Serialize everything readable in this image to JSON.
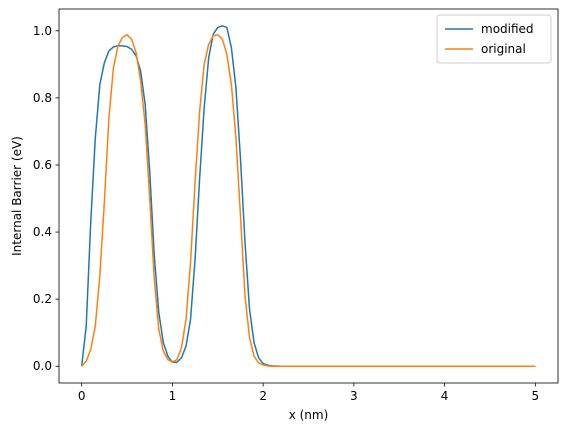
{
  "chart_data": {
    "type": "line",
    "xlabel": "x (nm)",
    "ylabel": "Internal Barrier (eV)",
    "xlim": [
      -0.25,
      5.25
    ],
    "ylim": [
      -0.05,
      1.065
    ],
    "xticks": [
      0,
      1,
      2,
      3,
      4,
      5
    ],
    "xtick_labels": [
      "0",
      "1",
      "2",
      "3",
      "4",
      "5"
    ],
    "yticks": [
      0.0,
      0.2,
      0.4,
      0.6,
      0.8,
      1.0
    ],
    "ytick_labels": [
      "0.0",
      "0.2",
      "0.4",
      "0.6",
      "0.8",
      "1.0"
    ],
    "grid": false,
    "legend": "top-right",
    "series": [
      {
        "name": "modified",
        "color": "#1f77b4",
        "x": [
          0,
          0.05,
          0.1,
          0.15,
          0.2,
          0.25,
          0.3,
          0.35,
          0.4,
          0.45,
          0.5,
          0.55,
          0.6,
          0.65,
          0.7,
          0.75,
          0.8,
          0.85,
          0.9,
          0.95,
          1.0,
          1.05,
          1.1,
          1.15,
          1.2,
          1.25,
          1.3,
          1.35,
          1.4,
          1.45,
          1.5,
          1.55,
          1.6,
          1.65,
          1.7,
          1.75,
          1.8,
          1.85,
          1.9,
          1.95,
          2.0,
          2.05,
          2.1,
          2.2,
          2.5,
          3.0,
          3.5,
          4.0,
          4.5,
          5.0
        ],
        "y": [
          0.0,
          0.12,
          0.43,
          0.68,
          0.84,
          0.905,
          0.94,
          0.952,
          0.955,
          0.955,
          0.953,
          0.945,
          0.925,
          0.88,
          0.78,
          0.58,
          0.33,
          0.16,
          0.07,
          0.03,
          0.012,
          0.012,
          0.025,
          0.06,
          0.14,
          0.32,
          0.56,
          0.77,
          0.92,
          0.99,
          1.01,
          1.015,
          1.01,
          0.95,
          0.83,
          0.62,
          0.37,
          0.17,
          0.07,
          0.025,
          0.008,
          0.003,
          0.001,
          0.0,
          0.0,
          0.0,
          0.0,
          0.0,
          0.0,
          0.0
        ]
      },
      {
        "name": "original",
        "color": "#ff7f0e",
        "x": [
          0,
          0.05,
          0.1,
          0.15,
          0.2,
          0.25,
          0.3,
          0.35,
          0.4,
          0.45,
          0.5,
          0.55,
          0.6,
          0.65,
          0.7,
          0.75,
          0.8,
          0.85,
          0.9,
          0.95,
          1.0,
          1.05,
          1.1,
          1.15,
          1.2,
          1.25,
          1.3,
          1.35,
          1.4,
          1.45,
          1.5,
          1.55,
          1.6,
          1.65,
          1.7,
          1.75,
          1.8,
          1.85,
          1.9,
          1.95,
          2.0,
          2.05,
          2.1,
          2.2,
          2.5,
          3.0,
          3.5,
          4.0,
          4.5,
          5.0
        ],
        "y": [
          0.0,
          0.015,
          0.05,
          0.12,
          0.27,
          0.49,
          0.74,
          0.89,
          0.955,
          0.98,
          0.988,
          0.975,
          0.935,
          0.85,
          0.72,
          0.5,
          0.26,
          0.11,
          0.045,
          0.02,
          0.012,
          0.02,
          0.055,
          0.14,
          0.31,
          0.55,
          0.76,
          0.9,
          0.96,
          0.985,
          0.988,
          0.975,
          0.93,
          0.84,
          0.68,
          0.45,
          0.21,
          0.085,
          0.03,
          0.01,
          0.004,
          0.001,
          0.0,
          0.0,
          0.0,
          0.0,
          0.0,
          0.0,
          0.0,
          0.0
        ]
      }
    ]
  }
}
